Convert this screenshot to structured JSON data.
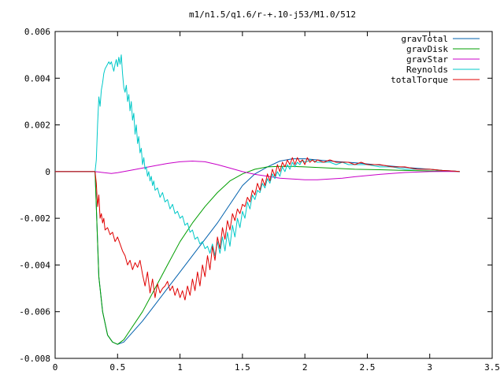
{
  "chart_data": {
    "type": "line",
    "title": "m1/n1.5/q1.6/r-+.10-j53/M1.0/512",
    "xlabel": "",
    "ylabel": "",
    "xlim": [
      0,
      3.5
    ],
    "ylim": [
      -0.008,
      0.006
    ],
    "xticks": [
      0,
      0.5,
      1,
      1.5,
      2,
      2.5,
      3,
      3.5
    ],
    "xtick_labels": [
      "0",
      "0.5",
      "1",
      "1.5",
      "2",
      "2.5",
      "3",
      "3.5"
    ],
    "yticks": [
      -0.008,
      -0.006,
      -0.004,
      -0.002,
      0,
      0.002,
      0.004,
      0.006
    ],
    "ytick_labels": [
      "-0.008",
      "-0.006",
      "-0.004",
      "-0.002",
      "0",
      "0.002",
      "0.004",
      "0.006"
    ],
    "grid": false,
    "legend_position": "top-right",
    "series": [
      {
        "name": "gravTotal",
        "color": "#0060ad",
        "x": [
          0,
          0.32,
          0.33,
          0.35,
          0.38,
          0.42,
          0.46,
          0.5,
          0.55,
          0.6,
          0.7,
          0.8,
          0.9,
          1.0,
          1.1,
          1.2,
          1.3,
          1.4,
          1.5,
          1.6,
          1.7,
          1.8,
          1.9,
          2.0,
          2.1,
          2.2,
          2.4,
          2.6,
          2.8,
          3.0,
          3.1,
          3.2,
          3.24
        ],
        "y": [
          0,
          0,
          -0.0015,
          -0.0045,
          -0.006,
          -0.007,
          -0.0073,
          -0.0074,
          -0.0073,
          -0.007,
          -0.0064,
          -0.0057,
          -0.005,
          -0.0043,
          -0.0036,
          -0.0029,
          -0.0022,
          -0.0014,
          -0.0006,
          -0.0001,
          0.0002,
          0.00045,
          0.00055,
          0.00055,
          0.0005,
          0.00045,
          0.00038,
          0.00028,
          0.00018,
          0.0001,
          5e-05,
          2e-05,
          0
        ]
      },
      {
        "name": "gravDisk",
        "color": "#009e00",
        "x": [
          0,
          0.32,
          0.33,
          0.35,
          0.38,
          0.42,
          0.46,
          0.5,
          0.55,
          0.6,
          0.7,
          0.8,
          0.9,
          1.0,
          1.1,
          1.2,
          1.3,
          1.4,
          1.5,
          1.6,
          1.7,
          1.8,
          1.9,
          2.0,
          2.2,
          2.4,
          2.6,
          2.8,
          3.0,
          3.1,
          3.2,
          3.24
        ],
        "y": [
          0,
          0,
          -0.0015,
          -0.0045,
          -0.006,
          -0.007,
          -0.0073,
          -0.0074,
          -0.0072,
          -0.0068,
          -0.006,
          -0.005,
          -0.004,
          -0.003,
          -0.0022,
          -0.0015,
          -0.0009,
          -0.0004,
          -0.0001,
          0.0001,
          0.0002,
          0.00022,
          0.00022,
          0.0002,
          0.00015,
          0.0001,
          8e-05,
          5e-05,
          3e-05,
          2e-05,
          1e-05,
          0
        ]
      },
      {
        "name": "gravStar",
        "color": "#c800c8",
        "x": [
          0,
          0.32,
          0.35,
          0.45,
          0.5,
          0.6,
          0.7,
          0.8,
          0.9,
          1.0,
          1.1,
          1.2,
          1.3,
          1.4,
          1.5,
          1.6,
          1.7,
          1.8,
          1.9,
          2.0,
          2.1,
          2.2,
          2.3,
          2.4,
          2.6,
          2.8,
          3.0,
          3.2,
          3.24
        ],
        "y": [
          0,
          0,
          -2e-05,
          -8e-05,
          -5e-05,
          5e-05,
          0.00015,
          0.00025,
          0.00035,
          0.00042,
          0.00045,
          0.00042,
          0.0003,
          0.00015,
          0,
          -0.00012,
          -0.0002,
          -0.00028,
          -0.00032,
          -0.00035,
          -0.00035,
          -0.00032,
          -0.00028,
          -0.00022,
          -0.00012,
          -4e-05,
          0,
          1e-05,
          0
        ]
      },
      {
        "name": "Reynolds",
        "color": "#00c8c8",
        "x": [
          0,
          0.32,
          0.33,
          0.34,
          0.35,
          0.36,
          0.37,
          0.38,
          0.39,
          0.4,
          0.41,
          0.42,
          0.43,
          0.44,
          0.45,
          0.46,
          0.47,
          0.48,
          0.49,
          0.5,
          0.51,
          0.52,
          0.53,
          0.54,
          0.55,
          0.56,
          0.57,
          0.58,
          0.59,
          0.6,
          0.61,
          0.62,
          0.63,
          0.64,
          0.65,
          0.66,
          0.67,
          0.68,
          0.69,
          0.7,
          0.71,
          0.72,
          0.73,
          0.74,
          0.75,
          0.76,
          0.77,
          0.78,
          0.79,
          0.8,
          0.82,
          0.84,
          0.86,
          0.88,
          0.9,
          0.92,
          0.94,
          0.96,
          0.98,
          1.0,
          1.02,
          1.04,
          1.06,
          1.08,
          1.1,
          1.12,
          1.14,
          1.16,
          1.18,
          1.2,
          1.22,
          1.24,
          1.26,
          1.28,
          1.3,
          1.32,
          1.34,
          1.36,
          1.38,
          1.4,
          1.42,
          1.44,
          1.46,
          1.48,
          1.5,
          1.52,
          1.54,
          1.56,
          1.58,
          1.6,
          1.62,
          1.64,
          1.66,
          1.68,
          1.7,
          1.72,
          1.74,
          1.76,
          1.78,
          1.8,
          1.82,
          1.84,
          1.86,
          1.88,
          1.9,
          1.92,
          1.94,
          1.96,
          1.98,
          2.0,
          2.05,
          2.1,
          2.15,
          2.2,
          2.25,
          2.3,
          2.35,
          2.4,
          2.45,
          2.5,
          2.6,
          2.7,
          2.8,
          2.9,
          3.0,
          3.1,
          3.2,
          3.24
        ],
        "y": [
          0,
          0,
          0.0005,
          0.002,
          0.0032,
          0.0028,
          0.0035,
          0.0038,
          0.0042,
          0.0044,
          0.0045,
          0.0046,
          0.0047,
          0.0046,
          0.0047,
          0.0045,
          0.0043,
          0.0046,
          0.0048,
          0.0045,
          0.0049,
          0.0046,
          0.005,
          0.0042,
          0.0036,
          0.0034,
          0.0037,
          0.003,
          0.0033,
          0.0026,
          0.003,
          0.0022,
          0.0025,
          0.0016,
          0.002,
          0.0012,
          0.0015,
          0.0008,
          0.001,
          0.0003,
          0.0006,
          0.0001,
          0.0002,
          -0.0002,
          0.0,
          -0.0004,
          -0.0002,
          -0.0006,
          -0.0004,
          -0.0008,
          -0.0007,
          -0.0011,
          -0.0009,
          -0.0013,
          -0.0012,
          -0.0016,
          -0.0014,
          -0.0018,
          -0.0017,
          -0.002,
          -0.0019,
          -0.0023,
          -0.0022,
          -0.0026,
          -0.0025,
          -0.0029,
          -0.0028,
          -0.0031,
          -0.003,
          -0.0033,
          -0.0032,
          -0.0035,
          -0.0031,
          -0.0036,
          -0.003,
          -0.0035,
          -0.0028,
          -0.0034,
          -0.0026,
          -0.0032,
          -0.0023,
          -0.0028,
          -0.002,
          -0.0024,
          -0.0017,
          -0.002,
          -0.0013,
          -0.0016,
          -0.001,
          -0.0012,
          -0.0008,
          -0.0009,
          -0.0005,
          -0.0007,
          -0.0003,
          -0.0005,
          -0.0001,
          -0.0003,
          0.0,
          -0.0002,
          0.0002,
          0.0,
          0.0003,
          0.0001,
          0.0004,
          0.0002,
          0.0004,
          0.0003,
          0.0005,
          0.0004,
          0.0005,
          0.0004,
          0.0004,
          0.0004,
          0.0003,
          0.0004,
          0.0003,
          0.0003,
          0.0003,
          0.0003,
          0.0002,
          0.0002,
          0.0001,
          0.0001,
          0.0001,
          5e-05,
          2e-05,
          0
        ]
      },
      {
        "name": "totalTorque",
        "color": "#e00000",
        "x": [
          0,
          0.32,
          0.33,
          0.34,
          0.35,
          0.36,
          0.37,
          0.38,
          0.39,
          0.4,
          0.42,
          0.44,
          0.46,
          0.48,
          0.5,
          0.52,
          0.54,
          0.56,
          0.58,
          0.6,
          0.62,
          0.64,
          0.66,
          0.68,
          0.7,
          0.72,
          0.74,
          0.76,
          0.78,
          0.8,
          0.82,
          0.84,
          0.86,
          0.88,
          0.9,
          0.92,
          0.94,
          0.96,
          0.98,
          1.0,
          1.02,
          1.04,
          1.06,
          1.08,
          1.1,
          1.12,
          1.14,
          1.16,
          1.18,
          1.2,
          1.22,
          1.24,
          1.26,
          1.28,
          1.3,
          1.32,
          1.34,
          1.36,
          1.38,
          1.4,
          1.42,
          1.44,
          1.46,
          1.48,
          1.5,
          1.52,
          1.54,
          1.56,
          1.58,
          1.6,
          1.62,
          1.64,
          1.66,
          1.68,
          1.7,
          1.72,
          1.74,
          1.76,
          1.78,
          1.8,
          1.82,
          1.84,
          1.86,
          1.88,
          1.9,
          1.92,
          1.94,
          1.96,
          1.98,
          2.0,
          2.02,
          2.04,
          2.06,
          2.08,
          2.1,
          2.15,
          2.2,
          2.25,
          2.3,
          2.35,
          2.4,
          2.45,
          2.5,
          2.6,
          2.7,
          2.8,
          2.9,
          3.0,
          3.1,
          3.2,
          3.24
        ],
        "y": [
          0,
          0,
          -0.0005,
          -0.0015,
          -0.001,
          -0.002,
          -0.0018,
          -0.0022,
          -0.002,
          -0.0025,
          -0.0024,
          -0.0027,
          -0.0026,
          -0.003,
          -0.0028,
          -0.0031,
          -0.0034,
          -0.0036,
          -0.004,
          -0.0038,
          -0.0042,
          -0.0039,
          -0.0041,
          -0.0038,
          -0.0044,
          -0.0049,
          -0.0043,
          -0.0052,
          -0.0046,
          -0.0054,
          -0.0048,
          -0.0052,
          -0.005,
          -0.0049,
          -0.0047,
          -0.0051,
          -0.0049,
          -0.0053,
          -0.005,
          -0.0054,
          -0.0051,
          -0.0055,
          -0.0049,
          -0.0053,
          -0.0046,
          -0.0051,
          -0.0043,
          -0.0049,
          -0.004,
          -0.0045,
          -0.0036,
          -0.0042,
          -0.0032,
          -0.0038,
          -0.0028,
          -0.0033,
          -0.0024,
          -0.0029,
          -0.0021,
          -0.0025,
          -0.0018,
          -0.0021,
          -0.0016,
          -0.0018,
          -0.0014,
          -0.0015,
          -0.0011,
          -0.0013,
          -0.0008,
          -0.001,
          -0.0005,
          -0.0008,
          -0.0003,
          -0.0006,
          -0.0001,
          -0.0004,
          0.0001,
          -0.0002,
          0.0003,
          0.0,
          0.0004,
          0.0002,
          0.0005,
          0.0003,
          0.0006,
          0.0003,
          0.0006,
          0.0004,
          0.0005,
          0.0003,
          0.0006,
          0.0004,
          0.0005,
          0.0004,
          0.0005,
          0.0004,
          0.0005,
          0.0004,
          0.0004,
          0.0004,
          0.0003,
          0.0004,
          0.0003,
          0.0003,
          0.0002,
          0.0002,
          0.0001,
          0.0001,
          5e-05,
          2e-05,
          0
        ]
      }
    ]
  }
}
